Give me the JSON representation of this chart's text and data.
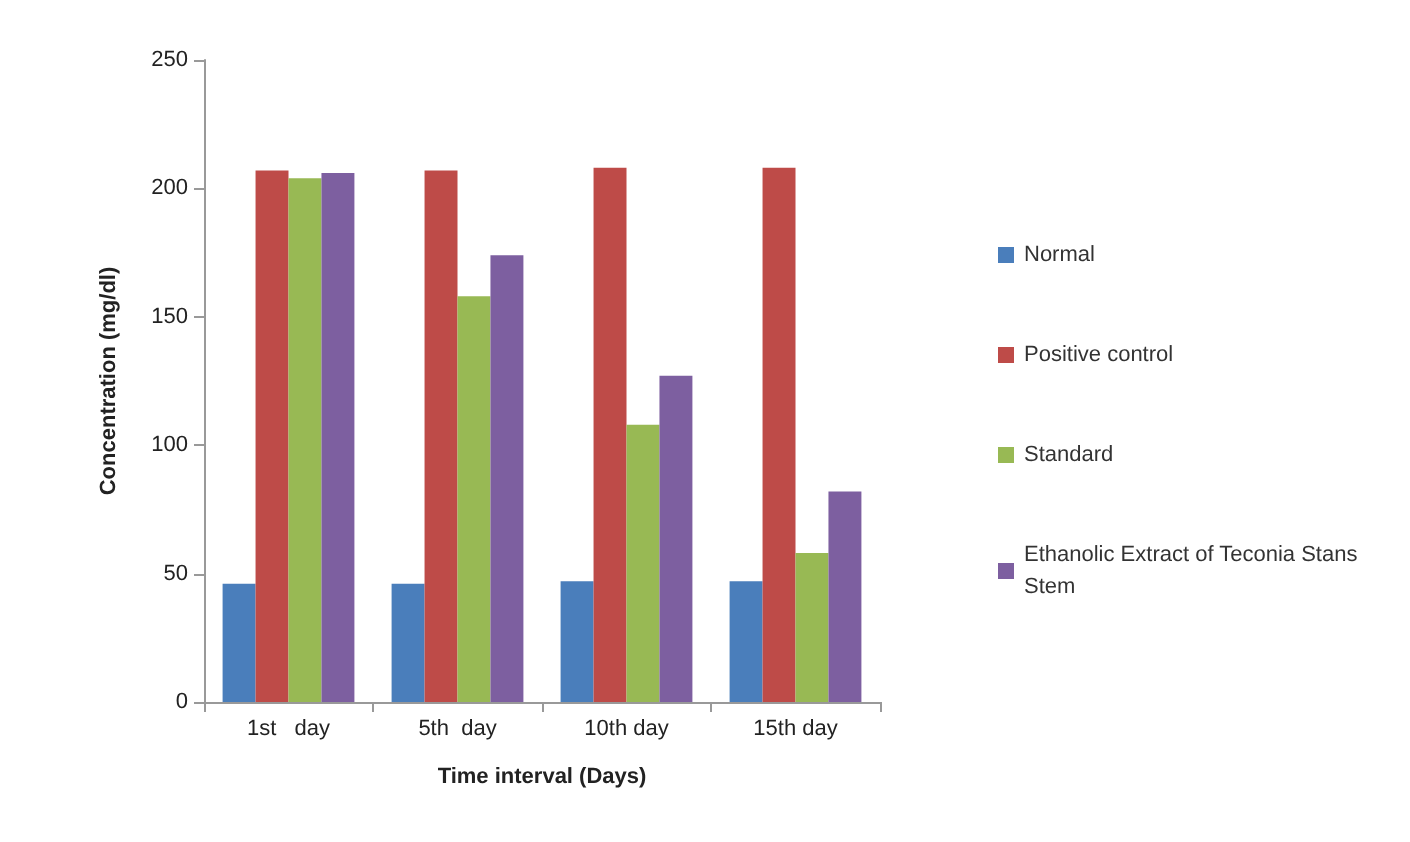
{
  "chart_data": {
    "type": "bar",
    "xlabel": "Time interval (Days)",
    "ylabel": "Concentration (mg/dl)",
    "categories": [
      "1st   day",
      "5th  day",
      "10th day",
      "15th day"
    ],
    "series": [
      {
        "name": "Normal",
        "color": "#4a7ebb",
        "values": [
          46,
          46,
          47,
          47
        ]
      },
      {
        "name": "Positive control",
        "color": "#be4b48",
        "values": [
          207,
          207,
          208,
          208
        ]
      },
      {
        "name": "Standard",
        "color": "#98b954",
        "values": [
          204,
          158,
          108,
          58
        ]
      },
      {
        "name": "Ethanolic Extract of Teconia Stans Stem",
        "color": "#7d5fa0",
        "values": [
          206,
          174,
          127,
          82
        ]
      }
    ],
    "ylim": [
      0,
      250
    ],
    "yticks": [
      0,
      50,
      100,
      150,
      200,
      250
    ],
    "grid": false,
    "legend": "right"
  }
}
